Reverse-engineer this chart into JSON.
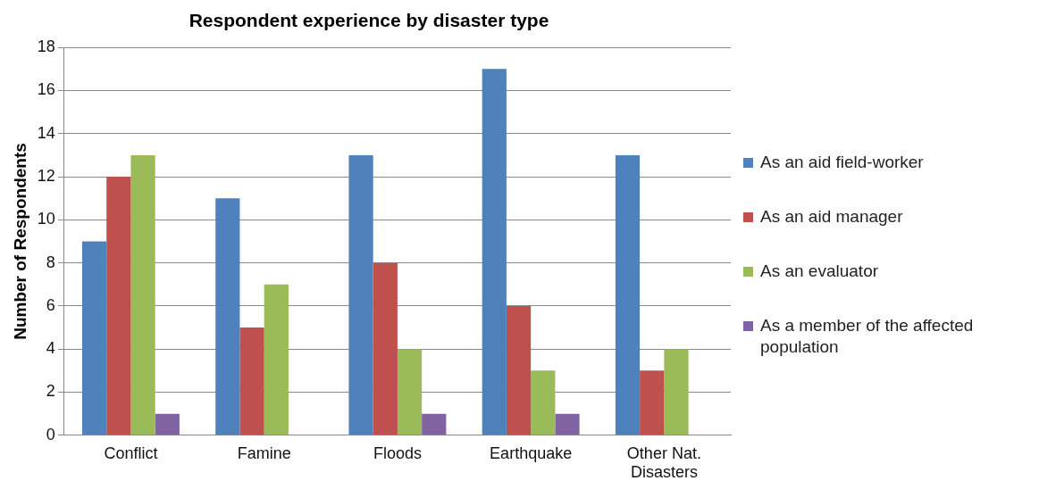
{
  "chart_data": {
    "type": "bar",
    "title": "Respondent experience by disaster type",
    "ylabel": "Number of Respondents",
    "categories": [
      "Conflict",
      "Famine",
      "Floods",
      "Earthquake",
      "Other Nat. Disasters"
    ],
    "series": [
      {
        "name": "As an aid field-worker",
        "color": "#4f81bd",
        "values": [
          9,
          11,
          13,
          17,
          13
        ]
      },
      {
        "name": "As an aid manager",
        "color": "#c0504d",
        "values": [
          12,
          5,
          8,
          6,
          3
        ]
      },
      {
        "name": "As an evaluator",
        "color": "#9bbb59",
        "values": [
          13,
          7,
          4,
          3,
          4
        ]
      },
      {
        "name": "As a member of the affected population",
        "color": "#8064a2",
        "values": [
          1,
          0,
          1,
          1,
          0
        ]
      }
    ],
    "ylim": [
      0,
      18
    ],
    "yticks": [
      0,
      2,
      4,
      6,
      8,
      10,
      12,
      14,
      16,
      18
    ],
    "grid": "y",
    "legend": "right"
  }
}
